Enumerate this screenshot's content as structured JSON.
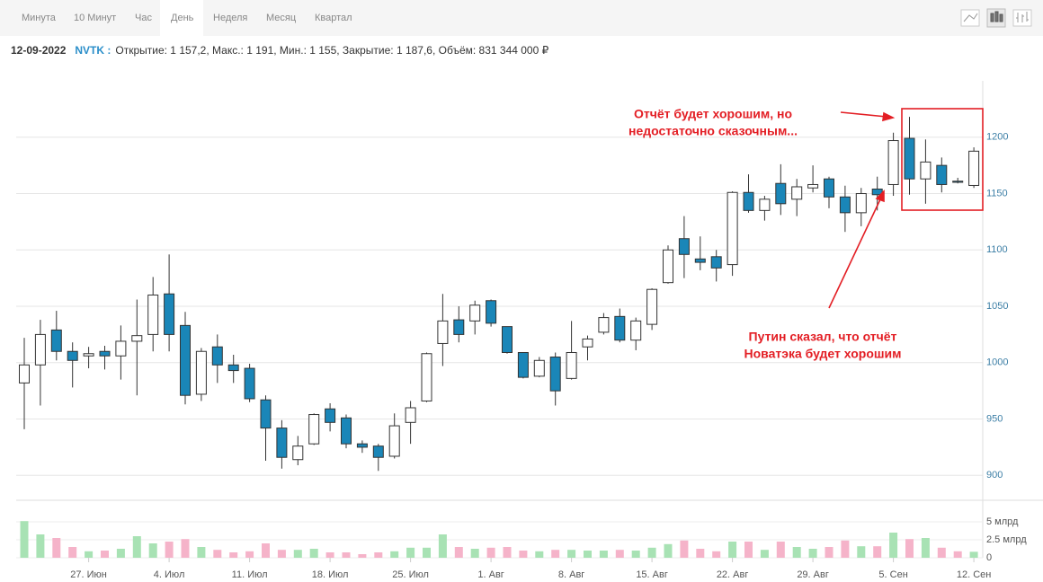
{
  "tabs": [
    "Минута",
    "10 Минут",
    "Час",
    "День",
    "Неделя",
    "Месяц",
    "Квартал"
  ],
  "active_tab": 3,
  "header": {
    "date": "12-09-2022",
    "ticker": "NVTK :",
    "info": "Открытие: 1 157,2, Макс.: 1 191, Мин.: 1 155, Закрытие: 1 187,6, Объём: 831 344 000 ₽"
  },
  "chart_data": {
    "type": "candlestick",
    "categories": [
      null,
      null,
      null,
      null,
      "27. Июн",
      null,
      null,
      null,
      null,
      "4. Июл",
      null,
      null,
      null,
      null,
      "11. Июл",
      null,
      null,
      null,
      null,
      "18. Июл",
      null,
      null,
      null,
      null,
      "25. Июл",
      null,
      null,
      null,
      null,
      "1. Авг",
      null,
      null,
      null,
      null,
      "8. Авг",
      null,
      null,
      null,
      null,
      "15. Авг",
      null,
      null,
      null,
      null,
      "22. Авг",
      null,
      null,
      null,
      null,
      "29. Авг",
      null,
      null,
      null,
      null,
      "5. Сен",
      null,
      null,
      null,
      null,
      "12. Сен"
    ],
    "open": [
      982,
      998,
      1029,
      1010,
      1006,
      1010,
      1006,
      1019,
      1025,
      1061,
      1033,
      972,
      1014,
      998,
      995,
      967,
      942,
      914,
      928,
      959,
      951,
      928,
      926,
      917,
      947,
      966,
      1017,
      1038,
      1037,
      1055,
      1032,
      1009,
      988,
      1005,
      986,
      1014,
      1027,
      1041,
      1020,
      1034,
      1071,
      1110,
      1092,
      1094,
      1087,
      1151,
      1135,
      1159,
      1145,
      1155,
      1163,
      1147,
      1133,
      1154,
      1158,
      1199,
      1163,
      1175,
      1161,
      1157.2
    ],
    "high": [
      1022,
      1038,
      1046,
      1018,
      1014,
      1015,
      1033,
      1056,
      1076,
      1096,
      1045,
      1013,
      1025,
      1007,
      999,
      971,
      949,
      935,
      955,
      964,
      954,
      931,
      928,
      955,
      966,
      1009,
      1061,
      1050,
      1055,
      1056,
      1032,
      1009,
      1005,
      1009,
      1037,
      1024,
      1044,
      1048,
      1040,
      1066,
      1104,
      1130,
      1112,
      1100,
      1152,
      1167,
      1148,
      1176,
      1163,
      1175,
      1165,
      1157,
      1155,
      1165,
      1204,
      1218,
      1198,
      1182,
      1164,
      1191
    ],
    "low": [
      941,
      962,
      1002,
      978,
      995,
      994,
      985,
      971,
      1010,
      1010,
      963,
      966,
      982,
      982,
      965,
      913,
      906,
      909,
      927,
      939,
      924,
      920,
      904,
      915,
      928,
      965,
      997,
      1018,
      1025,
      1032,
      1008,
      986,
      987,
      962,
      985,
      1002,
      1025,
      1018,
      1011,
      1029,
      1070,
      1075,
      1082,
      1072,
      1077,
      1133,
      1126,
      1131,
      1130,
      1151,
      1137,
      1116,
      1121,
      1135,
      1148,
      1149,
      1141,
      1151,
      1159,
      1155
    ],
    "close": [
      998,
      1025,
      1010,
      1002,
      1008,
      1006,
      1019,
      1024,
      1060,
      1025,
      971,
      1010,
      998,
      993,
      968,
      942,
      916,
      926,
      954,
      947,
      928,
      925,
      916,
      944,
      960,
      1008,
      1037,
      1025,
      1051,
      1035,
      1009,
      987,
      1002,
      975,
      1009,
      1021,
      1040,
      1020,
      1037,
      1065,
      1100,
      1096,
      1089,
      1084,
      1151,
      1135,
      1145,
      1141,
      1156,
      1158,
      1147,
      1133,
      1150,
      1149,
      1197,
      1163,
      1178,
      1158,
      1160,
      1187.6
    ],
    "up_color": "#ffffff",
    "down_color": "#1a86b8",
    "wick_color": "#333333",
    "ylim": [
      887.5,
      1250
    ],
    "yticks": [
      900,
      950,
      1000,
      1050,
      1100,
      1150,
      1200
    ],
    "grid": true,
    "volume": {
      "values": [
        5.1,
        3.25,
        2.75,
        1.5,
        0.9,
        1.0,
        1.25,
        3.0,
        2.0,
        2.25,
        2.6,
        1.5,
        1.1,
        0.75,
        0.9,
        2.0,
        1.1,
        1.1,
        1.25,
        0.75,
        0.75,
        0.5,
        0.75,
        0.9,
        1.4,
        1.4,
        3.25,
        1.5,
        1.25,
        1.4,
        1.5,
        1.0,
        0.9,
        1.1,
        1.1,
        1.0,
        1.0,
        1.1,
        1.0,
        1.4,
        1.9,
        2.4,
        1.25,
        0.9,
        2.25,
        2.25,
        1.1,
        2.25,
        1.5,
        1.25,
        1.5,
        2.4,
        1.6,
        1.6,
        3.5,
        2.6,
        2.75,
        1.4,
        0.9,
        0.83
      ],
      "up_color": "#a8e2b4",
      "down_color": "#f5b3c9",
      "ylim": [
        0,
        6.125
      ],
      "yticks": [
        0,
        {
          "value": 2.5,
          "label": "2.5 млрд"
        },
        {
          "value": 5,
          "label": "5 млрд"
        }
      ]
    },
    "annotations": [
      {
        "lines": [
          "Отчёт будет хорошим, но",
          "недостаточно сказочным..."
        ]
      },
      {
        "lines": [
          "Путин сказал, что отчёт",
          "Новатэка будет хорошим"
        ]
      }
    ]
  }
}
